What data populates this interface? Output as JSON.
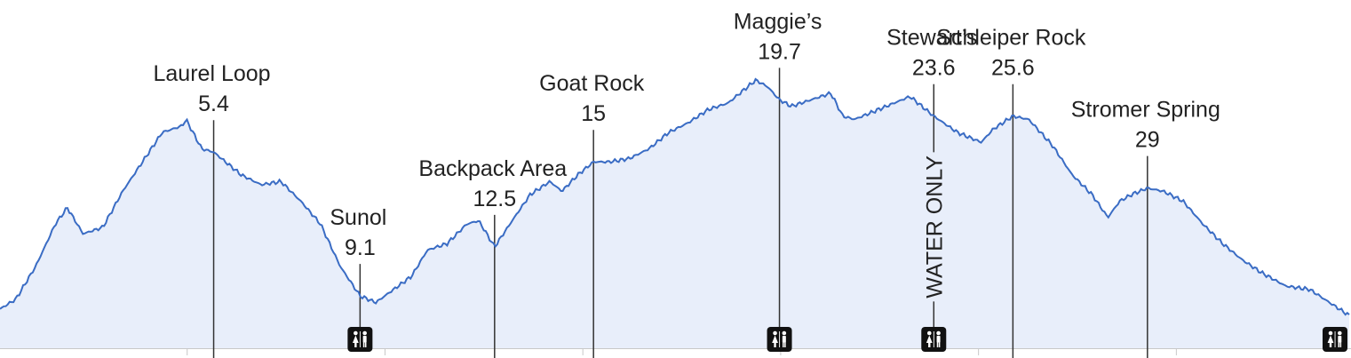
{
  "chart_data": {
    "type": "area",
    "title": "",
    "xlabel": "",
    "ylabel": "",
    "x_unit": "mi",
    "xlim": [
      0,
      34.1
    ],
    "ylim": [
      0,
      100
    ],
    "grid": false,
    "legend": "none",
    "colors": {
      "line": "#3a6cc4",
      "fill": "#e8eefa",
      "marker": "#333333",
      "axis": "#c8c8c8"
    },
    "profile": [
      [
        0,
        12
      ],
      [
        0.4,
        15
      ],
      [
        0.9,
        25
      ],
      [
        1.4,
        38
      ],
      [
        1.7,
        43
      ],
      [
        2.1,
        35
      ],
      [
        2.6,
        37
      ],
      [
        3.1,
        48
      ],
      [
        3.6,
        57
      ],
      [
        4.1,
        66
      ],
      [
        4.6,
        68
      ],
      [
        4.7,
        70
      ],
      [
        5.1,
        61
      ],
      [
        5.4,
        60
      ],
      [
        6.1,
        53
      ],
      [
        6.6,
        50
      ],
      [
        7.1,
        51
      ],
      [
        7.6,
        45
      ],
      [
        8.1,
        38
      ],
      [
        8.6,
        25
      ],
      [
        9.1,
        16
      ],
      [
        9.5,
        14
      ],
      [
        10.4,
        22
      ],
      [
        10.8,
        30
      ],
      [
        11.3,
        32
      ],
      [
        11.8,
        38
      ],
      [
        12.1,
        39
      ],
      [
        12.5,
        31
      ],
      [
        13.0,
        40
      ],
      [
        13.4,
        47
      ],
      [
        13.9,
        51
      ],
      [
        14.2,
        48
      ],
      [
        14.6,
        53
      ],
      [
        15,
        57
      ],
      [
        15.4,
        57
      ],
      [
        15.9,
        58
      ],
      [
        16.4,
        61
      ],
      [
        16.9,
        66
      ],
      [
        17.4,
        69
      ],
      [
        17.9,
        73
      ],
      [
        18.4,
        75
      ],
      [
        18.8,
        79
      ],
      [
        19.1,
        82
      ],
      [
        19.4,
        80
      ],
      [
        19.7,
        76
      ],
      [
        20.0,
        74
      ],
      [
        20.5,
        76
      ],
      [
        21.0,
        78
      ],
      [
        21.3,
        71
      ],
      [
        21.6,
        70
      ],
      [
        22.0,
        72
      ],
      [
        22.6,
        75
      ],
      [
        23.0,
        77
      ],
      [
        23.6,
        71
      ],
      [
        24.2,
        66
      ],
      [
        24.8,
        63
      ],
      [
        25.1,
        67
      ],
      [
        25.6,
        71
      ],
      [
        26.0,
        70
      ],
      [
        26.6,
        62
      ],
      [
        27.1,
        53
      ],
      [
        27.6,
        47
      ],
      [
        28.0,
        40
      ],
      [
        28.3,
        45
      ],
      [
        28.6,
        47
      ],
      [
        29.0,
        49
      ],
      [
        29.4,
        48
      ],
      [
        29.9,
        45
      ],
      [
        30.4,
        38
      ],
      [
        30.9,
        32
      ],
      [
        31.4,
        27
      ],
      [
        31.9,
        23
      ],
      [
        32.5,
        19
      ],
      [
        33.1,
        18
      ],
      [
        33.6,
        14
      ],
      [
        34.1,
        10
      ]
    ],
    "annotations": [
      {
        "name": "Laurel Loop",
        "mile": "5.4",
        "x": 5.4,
        "restroom": false,
        "label_dy": 0
      },
      {
        "name": "Sunol",
        "mile": "9.1",
        "x": 9.1,
        "restroom": true,
        "label_dy": 0
      },
      {
        "name": "Backpack Area",
        "mile": "12.5",
        "x": 12.5,
        "restroom": false,
        "label_dy": 0
      },
      {
        "name": "Goat Rock",
        "mile": "15",
        "x": 15,
        "restroom": false,
        "label_dy": 0
      },
      {
        "name": "Maggie’s",
        "mile": "19.7",
        "x": 19.7,
        "restroom": true,
        "label_dy": 0
      },
      {
        "name": "Stewart’s",
        "mile": "23.6",
        "x": 23.6,
        "restroom": true,
        "label_dy": 0,
        "note": "WATER ONLY"
      },
      {
        "name": "Schleiper Rock",
        "mile": "25.6",
        "x": 25.6,
        "restroom": false,
        "label_dy": 0
      },
      {
        "name": "Stromer Spring",
        "mile": "29",
        "x": 29,
        "restroom": false,
        "label_dy": 0
      }
    ],
    "end_restroom": true
  }
}
